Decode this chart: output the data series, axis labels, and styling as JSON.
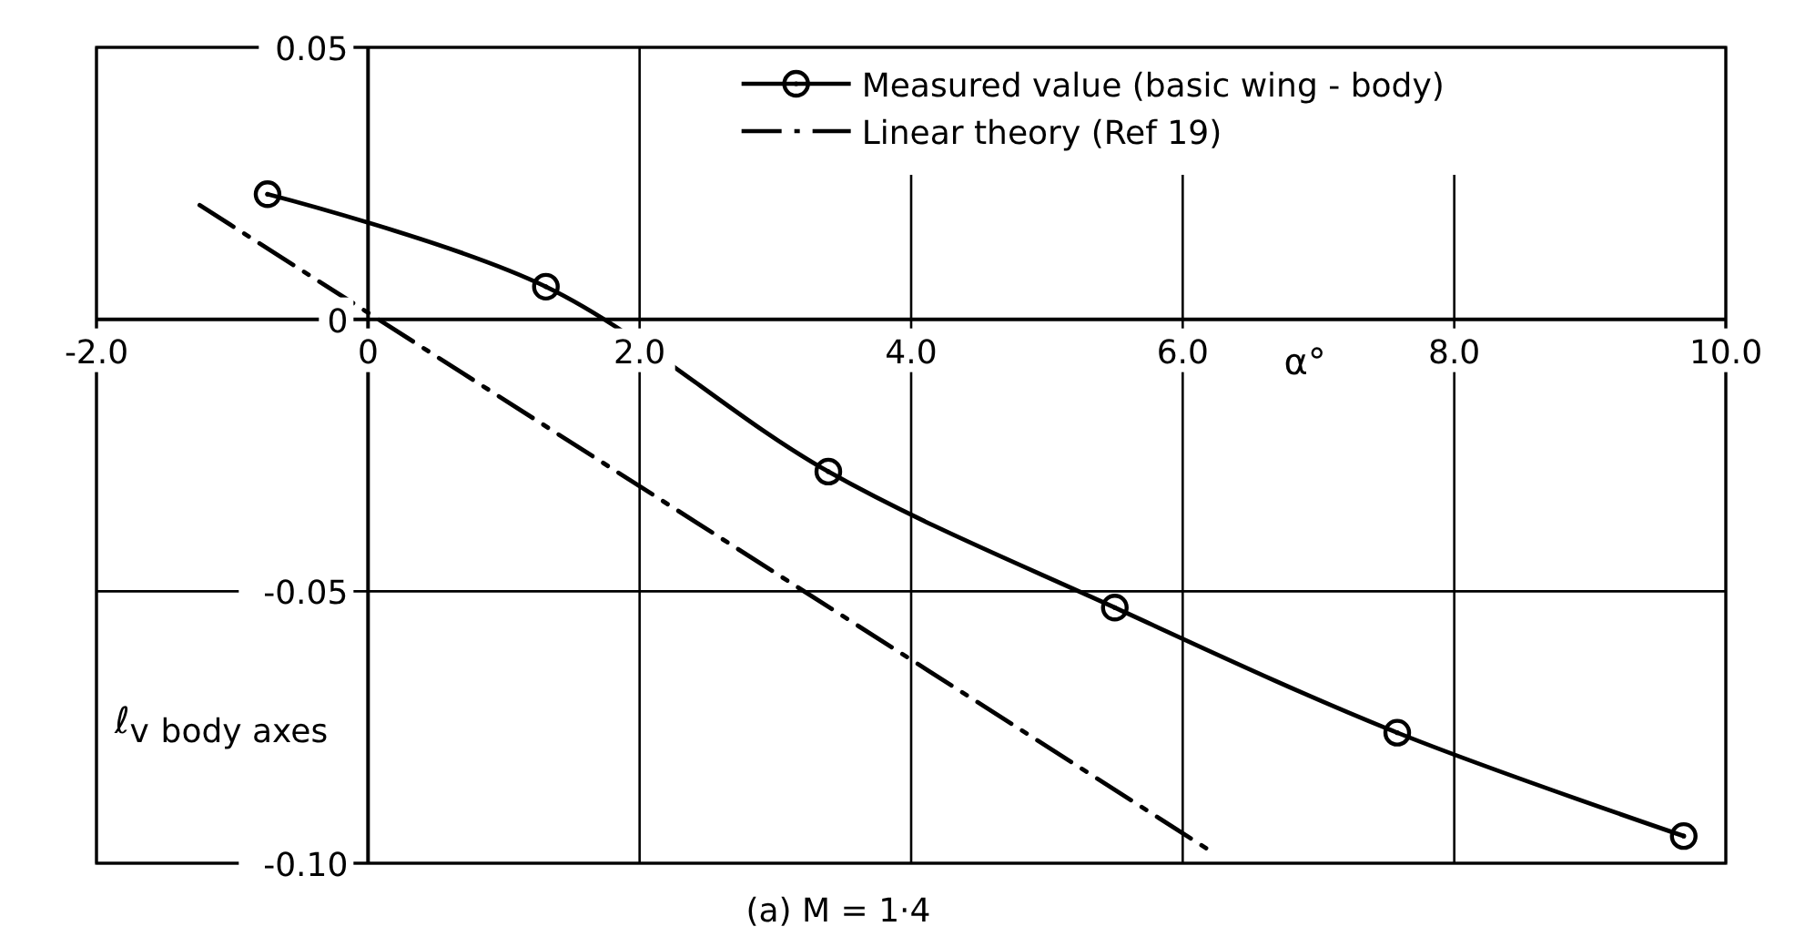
{
  "chart_data": {
    "type": "line",
    "xlabel": "α°",
    "ylabel": "ℓ$_{v}$ $_{body axes}$",
    "annotations": [
      "(a) M = 1·4"
    ],
    "xlim": [
      -2,
      10
    ],
    "ylim": [
      -0.1,
      0.05
    ],
    "xticks": [
      {
        "value": -2,
        "label": "-2.0"
      },
      0,
      {
        "value": 2,
        "label": "2.0"
      },
      {
        "value": 4,
        "label": "4.0"
      },
      {
        "value": 6,
        "label": "6.0"
      },
      {
        "value": 8,
        "label": "8.0"
      },
      {
        "value": 10,
        "label": "10.0"
      }
    ],
    "yticks": [
      {
        "value": -0.1,
        "label": "-0.10"
      },
      {
        "value": -0.05,
        "label": "-0.05"
      },
      0,
      {
        "value": 0.05,
        "label": "0.05"
      }
    ],
    "grid": true,
    "legend": "top right",
    "series": [
      {
        "name": "Measured value (basic wing - body)",
        "color": "#000000",
        "marker": "circle",
        "line_style": "solid",
        "x": [
          -0.74,
          1.31,
          3.39,
          5.5,
          7.58,
          9.69
        ],
        "values": [
          0.023,
          0.006,
          -0.028,
          -0.053,
          -0.076,
          -0.095
        ]
      },
      {
        "name": "Linear theory (Ref 19)",
        "color": "#000000",
        "marker": "none",
        "line_style": "dashed",
        "x": [
          -1.24,
          6.22
        ],
        "values": [
          0.021,
          -0.098
        ]
      }
    ]
  }
}
